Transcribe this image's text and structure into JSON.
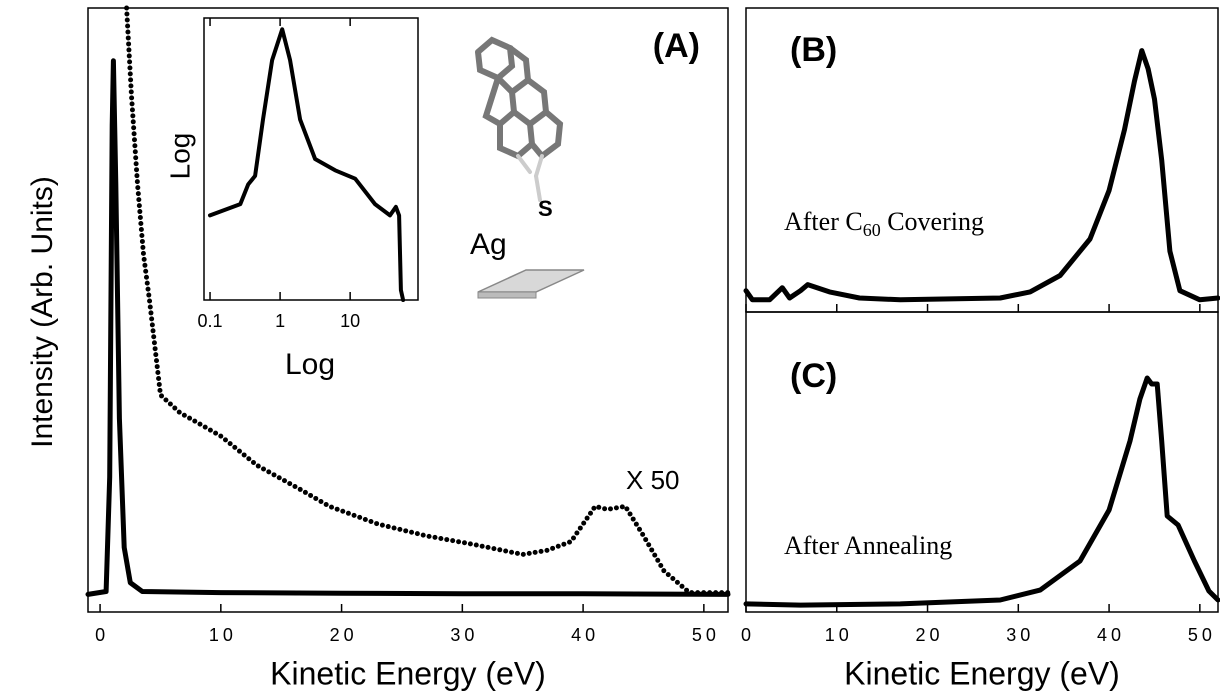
{
  "chart_data": [
    {
      "type": "line",
      "label": "(A)",
      "xlabel": "Kinetic Energy (eV)",
      "ylabel": "Intensity (Arb. Units)",
      "annotations": [
        "X 50",
        "Ag",
        "S"
      ],
      "xlim": [
        -1,
        52
      ],
      "ylim": [
        -3,
        100
      ],
      "xticks": [
        0,
        10,
        20,
        30,
        40,
        50
      ],
      "series": [
        {
          "color": "#000000",
          "line_style": "solid",
          "x": [
            -1,
            0.5,
            0.8,
            1.0,
            1.1,
            1.3,
            1.6,
            2.0,
            2.5,
            3.5,
            10,
            20,
            30,
            40,
            52
          ],
          "values": [
            0,
            0.5,
            20,
            80,
            91,
            70,
            30,
            8,
            2,
            0.5,
            0.3,
            0.2,
            0.1,
            0.1,
            0
          ]
        },
        {
          "color": "#000000",
          "line_style": "dotted",
          "x": [
            2.2,
            2.6,
            3.1,
            3.6,
            4.1,
            5.0,
            6.6,
            8.3,
            10,
            13,
            16.5,
            19,
            23,
            27,
            31,
            35,
            37,
            39,
            41,
            42,
            43.5,
            45,
            46.7,
            48.8,
            52
          ],
          "values": [
            100,
            85,
            70,
            58,
            50,
            34,
            31,
            29,
            27,
            22,
            18,
            15,
            12,
            10,
            8.5,
            6.8,
            7.5,
            9,
            15,
            14.5,
            15,
            10,
            4,
            0.3,
            0.3
          ]
        }
      ]
    },
    {
      "type": "line",
      "xlabel": "Log",
      "ylabel": "Log",
      "xscale": "log",
      "xlim": [
        0.082,
        93
      ],
      "ylim": [
        0,
        100
      ],
      "xticks": [
        0.1,
        1,
        10
      ],
      "series": [
        {
          "color": "#000000",
          "line_style": "solid",
          "x": [
            0.1,
            0.27,
            0.35,
            0.44,
            0.57,
            0.77,
            1.07,
            1.39,
            1.93,
            3.16,
            6.1,
            11.8,
            22.6,
            37,
            45,
            50,
            53,
            57
          ],
          "values": [
            30,
            34,
            41,
            44,
            64,
            85,
            96,
            85,
            64,
            50,
            46,
            43,
            34,
            30,
            33,
            30,
            3.5,
            0
          ]
        }
      ]
    },
    {
      "type": "line",
      "label": "(B)",
      "annotation": [
        "After C",
        "60",
        " Covering"
      ],
      "xlim": [
        0,
        52
      ],
      "ylim": [
        0,
        100
      ],
      "xticks": [
        0,
        10,
        20,
        30,
        40,
        50
      ],
      "series": [
        {
          "color": "#000000",
          "line_style": "solid",
          "x": [
            0,
            0.7,
            2.6,
            4,
            4.8,
            6,
            6.8,
            9.2,
            12.5,
            17,
            28,
            31.3,
            34.6,
            37.9,
            40,
            41.7,
            42.8,
            43.6,
            44.3,
            45,
            45.8,
            46.7,
            47.8,
            50,
            52
          ],
          "values": [
            7,
            4,
            4,
            8,
            4.6,
            7,
            9,
            6.6,
            4.6,
            4,
            4.6,
            6.6,
            12,
            24,
            40,
            60,
            76,
            86,
            80,
            70,
            50,
            20,
            7,
            4,
            4.6
          ]
        }
      ]
    },
    {
      "type": "line",
      "label": "(C)",
      "annotation": [
        "After Annealing"
      ],
      "xlabel": "Kinetic Energy (eV)",
      "xlim": [
        0,
        52
      ],
      "ylim": [
        0,
        100
      ],
      "xticks": [
        0,
        10,
        20,
        30,
        40,
        50
      ],
      "series": [
        {
          "color": "#000000",
          "line_style": "solid",
          "x": [
            0,
            6,
            17,
            28,
            32.4,
            36.8,
            40,
            42.3,
            43.4,
            44.2,
            44.7,
            45.3,
            45.8,
            46.4,
            47.6,
            49.4,
            51,
            52
          ],
          "values": [
            2.7,
            2.3,
            2.7,
            4,
            7.3,
            17,
            34,
            57,
            71,
            78,
            76,
            76,
            57,
            32,
            29,
            17,
            7,
            4
          ]
        }
      ]
    }
  ]
}
